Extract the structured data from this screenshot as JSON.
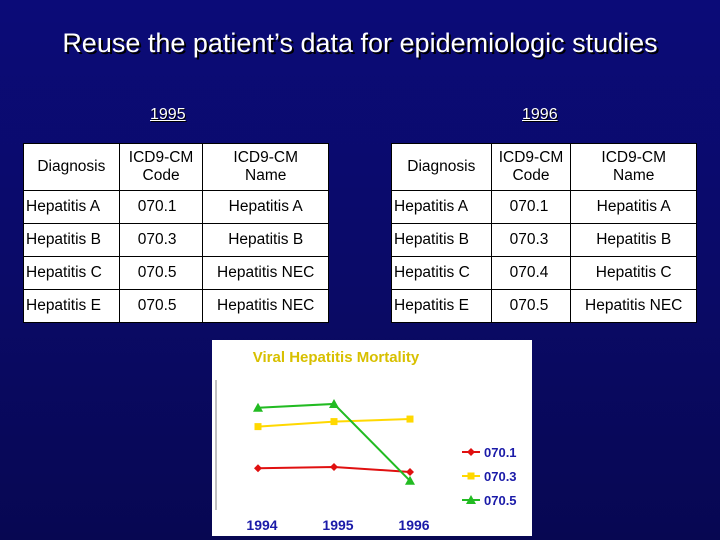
{
  "title": "Reuse the patient’s data for epidemiologic studies",
  "year_left": "1995",
  "year_right": "1996",
  "table_1995": {
    "headers": [
      "Diagnosis",
      "ICD9-CM\nCode",
      "ICD9-CM\nName"
    ],
    "rows": [
      [
        "Hepatitis A",
        "070.1",
        "Hepatitis A"
      ],
      [
        "Hepatitis B",
        "070.3",
        "Hepatitis B"
      ],
      [
        "Hepatitis C",
        "070.5",
        "Hepatitis NEC"
      ],
      [
        "Hepatitis E",
        "070.5",
        "Hepatitis NEC"
      ]
    ]
  },
  "table_1996": {
    "headers": [
      "Diagnosis",
      "ICD9-CM\nCode",
      "ICD9-CM\nName"
    ],
    "rows": [
      [
        "Hepatitis A",
        "070.1",
        "Hepatitis A"
      ],
      [
        "Hepatitis B",
        "070.3",
        "Hepatitis B"
      ],
      [
        "Hepatitis C",
        "070.4",
        "Hepatitis C"
      ],
      [
        "Hepatitis E",
        "070.5",
        "Hepatitis NEC"
      ]
    ]
  },
  "chart_data": {
    "type": "line",
    "title": "Viral Hepatitis Mortality",
    "categories": [
      "1994",
      "1995",
      "1996"
    ],
    "ylim": [
      0,
      10
    ],
    "series": [
      {
        "name": "070.1",
        "values": [
          3.0,
          3.1,
          2.7
        ],
        "color": "#e01010",
        "marker": "diamond"
      },
      {
        "name": "070.3",
        "values": [
          6.3,
          6.7,
          6.9
        ],
        "color": "#ffd800",
        "marker": "square"
      },
      {
        "name": "070.5",
        "values": [
          7.8,
          8.1,
          2.0
        ],
        "color": "#22bb22",
        "marker": "triangle"
      }
    ],
    "legend_position": "right",
    "title_color": "#d8c000",
    "legend_text_color": "#1a1aa8",
    "axis_label_color": "#1a1aa8"
  }
}
